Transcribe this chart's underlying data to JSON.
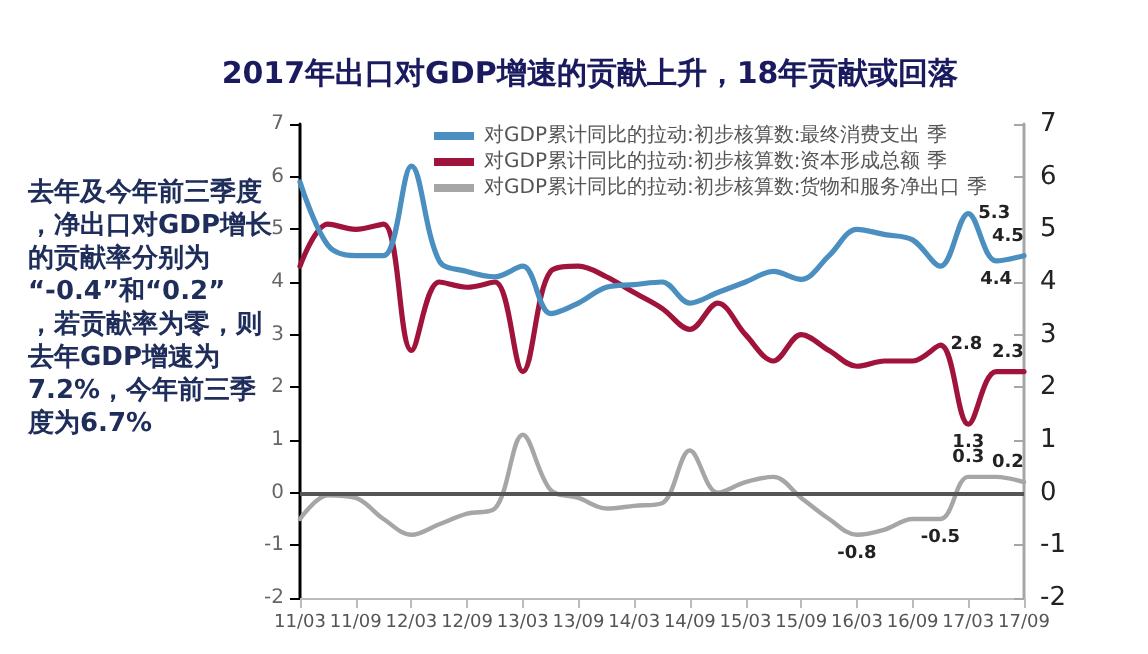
{
  "chart_data": {
    "type": "line",
    "title": "2017年出口对GDP增速的贡献上升，18年贡献或回落",
    "annotations": [
      "去年及今年前三季度，净出口对GDP增长的贡献率分别为“-0.4”和“0.2”，若贡献率为零，则去年GDP增速为7.2%，今年前三季度为6.7%"
    ],
    "categories": [
      "11/03",
      null,
      "11/09",
      null,
      "12/03",
      null,
      "12/09",
      null,
      "13/03",
      null,
      "13/09",
      null,
      "14/03",
      null,
      "14/09",
      null,
      "15/03",
      null,
      "15/09",
      null,
      "16/03",
      null,
      "16/09",
      null,
      "17/03",
      null,
      "17/09"
    ],
    "series": [
      {
        "name": "对GDP累计同比的拉动:初步核算数:最终消费支出 季",
        "color": "#4a8fc0",
        "values": [
          5.9,
          4.7,
          4.5,
          4.5,
          6.2,
          4.4,
          4.2,
          4.1,
          4.3,
          3.4,
          3.6,
          3.9,
          3.95,
          4.0,
          3.6,
          3.8,
          4.0,
          4.2,
          4.05,
          4.5,
          5.0,
          4.9,
          4.8,
          4.3,
          5.3,
          4.4,
          4.5
        ],
        "value_labels": [
          null,
          null,
          null,
          null,
          null,
          null,
          null,
          null,
          null,
          null,
          null,
          null,
          null,
          null,
          null,
          null,
          null,
          null,
          null,
          null,
          null,
          null,
          null,
          null,
          "5.3",
          "4.4",
          "4.5"
        ]
      },
      {
        "name": "对GDP累计同比的拉动:初步核算数:资本形成总额 季",
        "color": "#a0143c",
        "values": [
          4.3,
          5.1,
          5.0,
          5.1,
          2.7,
          4.0,
          3.9,
          4.0,
          2.3,
          4.2,
          4.3,
          4.1,
          3.8,
          3.5,
          3.1,
          3.6,
          3.0,
          2.5,
          3.0,
          2.7,
          2.4,
          2.5,
          2.5,
          2.8,
          1.3,
          2.3,
          2.3
        ],
        "value_labels": [
          null,
          null,
          null,
          null,
          null,
          null,
          null,
          null,
          null,
          null,
          null,
          null,
          null,
          null,
          null,
          null,
          null,
          null,
          null,
          null,
          null,
          null,
          null,
          "2.8",
          "1.3",
          null,
          "2.3"
        ]
      },
      {
        "name": "对GDP累计同比的拉动:初步核算数:货物和服务净出口 季",
        "color": "#a6a6a6",
        "axis": "y2",
        "values": [
          -0.5,
          -0.05,
          -0.1,
          -0.5,
          -0.8,
          -0.6,
          -0.4,
          -0.3,
          1.1,
          0.05,
          -0.1,
          -0.3,
          -0.25,
          -0.2,
          0.8,
          0.0,
          0.2,
          0.3,
          -0.1,
          -0.5,
          -0.8,
          -0.7,
          -0.5,
          -0.5,
          0.3,
          0.3,
          0.2
        ],
        "value_labels": [
          null,
          null,
          null,
          null,
          null,
          null,
          null,
          null,
          null,
          null,
          null,
          null,
          null,
          null,
          null,
          null,
          null,
          null,
          null,
          null,
          "-0.8",
          null,
          null,
          "-0.5",
          "0.3",
          null,
          "0.2"
        ]
      }
    ],
    "ylim": [
      -2,
      7
    ],
    "yticks": [
      -2,
      -1,
      0,
      1,
      2,
      3,
      4,
      5,
      6,
      7
    ],
    "y2lim": [
      -2,
      7
    ],
    "y2ticks": [
      -2,
      -1,
      0,
      1,
      2,
      3,
      4,
      5,
      6,
      7
    ],
    "ref_lines": [
      {
        "axis": "y",
        "value": 0,
        "color": "#555555"
      }
    ],
    "legend": "top",
    "grid": false,
    "marker": "none",
    "line_style": "solid"
  }
}
